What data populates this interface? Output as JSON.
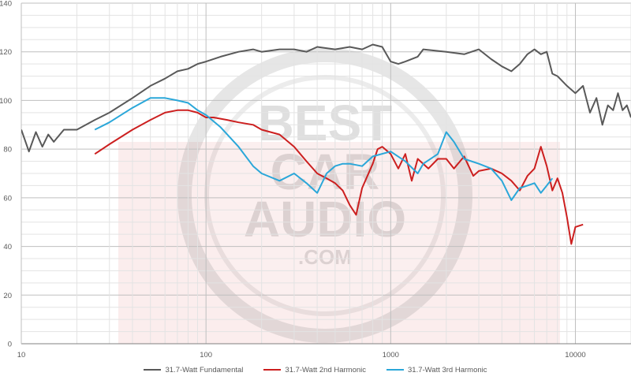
{
  "chart_data": {
    "type": "line",
    "title": "",
    "xlabel": "",
    "ylabel": "",
    "x_scale": "log",
    "xlim": [
      10,
      20000
    ],
    "ylim": [
      0,
      140
    ],
    "x_ticks": [
      "10",
      "100",
      "1000",
      "10000"
    ],
    "y_ticks": [
      "0",
      "20",
      "40",
      "60",
      "80",
      "100",
      "120",
      "140"
    ],
    "grid": true,
    "legend_position": "bottom",
    "watermark_text": [
      "BEST",
      "CAR",
      "AUDIO",
      ".COM"
    ],
    "series": [
      {
        "name": "31.7-Watt Fundamental",
        "color": "#595959",
        "points": [
          [
            10,
            88
          ],
          [
            11,
            79
          ],
          [
            12,
            87
          ],
          [
            13,
            81
          ],
          [
            14,
            86
          ],
          [
            15,
            83
          ],
          [
            17,
            88
          ],
          [
            20,
            88
          ],
          [
            25,
            92
          ],
          [
            30,
            95
          ],
          [
            40,
            101
          ],
          [
            50,
            106
          ],
          [
            60,
            109
          ],
          [
            70,
            112
          ],
          [
            80,
            113
          ],
          [
            90,
            115
          ],
          [
            100,
            116
          ],
          [
            120,
            118
          ],
          [
            150,
            120
          ],
          [
            180,
            121
          ],
          [
            200,
            120
          ],
          [
            250,
            121
          ],
          [
            300,
            121
          ],
          [
            350,
            120
          ],
          [
            400,
            122
          ],
          [
            500,
            121
          ],
          [
            600,
            122
          ],
          [
            700,
            121
          ],
          [
            800,
            123
          ],
          [
            900,
            122
          ],
          [
            1000,
            116
          ],
          [
            1100,
            115
          ],
          [
            1200,
            116
          ],
          [
            1400,
            118
          ],
          [
            1500,
            121
          ],
          [
            2000,
            120
          ],
          [
            2500,
            119
          ],
          [
            3000,
            121
          ],
          [
            3500,
            117
          ],
          [
            4000,
            114
          ],
          [
            4500,
            112
          ],
          [
            5000,
            115
          ],
          [
            5500,
            119
          ],
          [
            6000,
            121
          ],
          [
            6500,
            119
          ],
          [
            7000,
            120
          ],
          [
            7500,
            111
          ],
          [
            8000,
            110
          ],
          [
            9000,
            106
          ],
          [
            10000,
            103
          ],
          [
            11000,
            106
          ],
          [
            12000,
            95
          ],
          [
            13000,
            101
          ],
          [
            14000,
            90
          ],
          [
            15000,
            98
          ],
          [
            16000,
            96
          ],
          [
            17000,
            103
          ],
          [
            18000,
            96
          ],
          [
            19000,
            98
          ],
          [
            20000,
            93
          ]
        ]
      },
      {
        "name": "31.7-Watt 2nd Harmonic",
        "color": "#cc1f1f",
        "points": [
          [
            25,
            78
          ],
          [
            30,
            82
          ],
          [
            40,
            88
          ],
          [
            50,
            92
          ],
          [
            60,
            95
          ],
          [
            70,
            96
          ],
          [
            80,
            96
          ],
          [
            90,
            95
          ],
          [
            100,
            93
          ],
          [
            110,
            93
          ],
          [
            130,
            92
          ],
          [
            150,
            91
          ],
          [
            180,
            90
          ],
          [
            200,
            88
          ],
          [
            250,
            86
          ],
          [
            300,
            81
          ],
          [
            350,
            75
          ],
          [
            400,
            70
          ],
          [
            450,
            68
          ],
          [
            500,
            66
          ],
          [
            550,
            63
          ],
          [
            600,
            57
          ],
          [
            650,
            53
          ],
          [
            700,
            64
          ],
          [
            800,
            74
          ],
          [
            850,
            80
          ],
          [
            900,
            81
          ],
          [
            1000,
            78
          ],
          [
            1100,
            72
          ],
          [
            1200,
            78
          ],
          [
            1300,
            67
          ],
          [
            1400,
            76
          ],
          [
            1600,
            72
          ],
          [
            1800,
            76
          ],
          [
            2000,
            76
          ],
          [
            2200,
            72
          ],
          [
            2500,
            77
          ],
          [
            2800,
            69
          ],
          [
            3000,
            71
          ],
          [
            3500,
            72
          ],
          [
            4000,
            70
          ],
          [
            4500,
            67
          ],
          [
            5000,
            63
          ],
          [
            5500,
            69
          ],
          [
            6000,
            72
          ],
          [
            6500,
            81
          ],
          [
            7000,
            73
          ],
          [
            7500,
            63
          ],
          [
            8000,
            68
          ],
          [
            8500,
            62
          ],
          [
            9000,
            52
          ],
          [
            9500,
            41
          ],
          [
            10000,
            48
          ],
          [
            11000,
            49
          ]
        ]
      },
      {
        "name": "31.7-Watt 3rd Harmonic",
        "color": "#2aa7d9",
        "points": [
          [
            25,
            88
          ],
          [
            30,
            91
          ],
          [
            40,
            97
          ],
          [
            50,
            101
          ],
          [
            60,
            101
          ],
          [
            70,
            100
          ],
          [
            80,
            99
          ],
          [
            90,
            96
          ],
          [
            100,
            94
          ],
          [
            120,
            89
          ],
          [
            150,
            81
          ],
          [
            180,
            73
          ],
          [
            200,
            70
          ],
          [
            250,
            67
          ],
          [
            300,
            70
          ],
          [
            350,
            66
          ],
          [
            400,
            62
          ],
          [
            450,
            70
          ],
          [
            500,
            73
          ],
          [
            550,
            74
          ],
          [
            600,
            74
          ],
          [
            700,
            73
          ],
          [
            800,
            77
          ],
          [
            1000,
            79
          ],
          [
            1200,
            75
          ],
          [
            1400,
            70
          ],
          [
            1500,
            74
          ],
          [
            1800,
            78
          ],
          [
            2000,
            87
          ],
          [
            2200,
            83
          ],
          [
            2500,
            76
          ],
          [
            3000,
            74
          ],
          [
            3500,
            72
          ],
          [
            4000,
            67
          ],
          [
            4500,
            59
          ],
          [
            5000,
            64
          ],
          [
            5500,
            65
          ],
          [
            6000,
            66
          ],
          [
            6500,
            62
          ],
          [
            7000,
            65
          ],
          [
            7500,
            68
          ]
        ]
      }
    ]
  }
}
